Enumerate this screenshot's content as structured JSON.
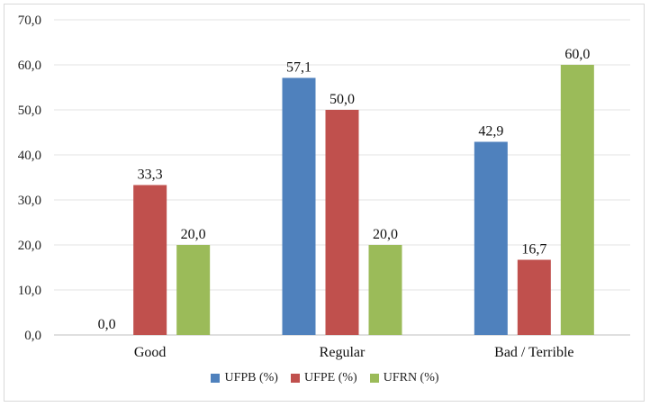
{
  "chart_data": {
    "type": "bar",
    "categories": [
      "Good",
      "Regular",
      "Bad / Terrible"
    ],
    "series": [
      {
        "name": "UFPB (%)",
        "values": [
          0.0,
          57.1,
          42.9
        ],
        "labels": [
          "0,0",
          "57,1",
          "42,9"
        ],
        "color": "#4f81bd"
      },
      {
        "name": "UFPE (%)",
        "values": [
          33.3,
          50.0,
          16.7
        ],
        "labels": [
          "33,3",
          "50,0",
          "16,7"
        ],
        "color": "#c0504d"
      },
      {
        "name": "UFRN (%)",
        "values": [
          20.0,
          20.0,
          60.0
        ],
        "labels": [
          "20,0",
          "20,0",
          "60,0"
        ],
        "color": "#9bbb59"
      }
    ],
    "ylim": [
      0,
      70
    ],
    "yticks": [
      {
        "value": 0,
        "label": "0,0"
      },
      {
        "value": 10,
        "label": "10,0"
      },
      {
        "value": 20,
        "label": "20,0"
      },
      {
        "value": 30,
        "label": "30,0"
      },
      {
        "value": 40,
        "label": "40,0"
      },
      {
        "value": 50,
        "label": "50,0"
      },
      {
        "value": 60,
        "label": "60,0"
      },
      {
        "value": 70,
        "label": "70,0"
      }
    ],
    "grid": true,
    "legend_position": "bottom"
  }
}
